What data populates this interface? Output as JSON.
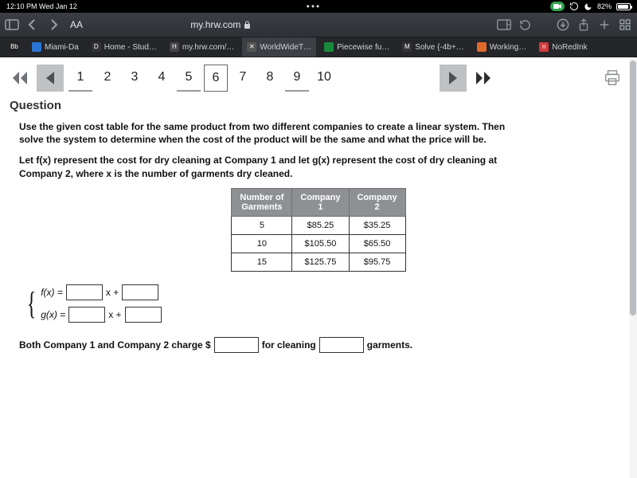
{
  "status": {
    "time_date": "12:10 PM  Wed Jan 12",
    "battery_pct": "82%"
  },
  "browser": {
    "text_size_label": "AA",
    "url": "my.hrw.com",
    "lock": "🔒"
  },
  "tabs": [
    {
      "label": "",
      "fav_bg": "#222",
      "fav_text": "Bb"
    },
    {
      "label": "Miami-Da",
      "fav_bg": "#2a74d4",
      "fav_text": ""
    },
    {
      "label": "Home - Stud…",
      "fav_bg": "#333",
      "fav_text": "D"
    },
    {
      "label": "my.hrw.com/…",
      "fav_bg": "#444",
      "fav_text": "H"
    },
    {
      "label": "WorldWideT…",
      "fav_bg": "#555",
      "fav_text": "✕",
      "active": true
    },
    {
      "label": "Piecewise fu…",
      "fav_bg": "#1a8a3a",
      "fav_text": ""
    },
    {
      "label": "Solve {-4b+…",
      "fav_bg": "#333",
      "fav_text": "M"
    },
    {
      "label": "Working…",
      "fav_bg": "#e06a2b",
      "fav_text": ""
    },
    {
      "label": "NoRedInk",
      "fav_bg": "#d23b3b",
      "fav_text": "n"
    }
  ],
  "pager": {
    "numbers": [
      "1",
      "2",
      "3",
      "4",
      "5",
      "6",
      "7",
      "8",
      "9",
      "10"
    ],
    "visited": [
      0,
      4,
      8
    ],
    "current": 5
  },
  "question": {
    "title": "Question",
    "para1": "Use the given cost table for the same product from two different companies to create a linear system. Then solve the system to determine when the cost of the product will be the same and what the price will be.",
    "para2": "Let f(x) represent the cost for dry cleaning at Company 1 and let g(x) represent the cost of dry cleaning at Company 2, where x is the number of garments dry cleaned."
  },
  "table": {
    "headers": {
      "c0a": "Number of",
      "c0b": "Garments",
      "c1a": "Company",
      "c1b": "1",
      "c2a": "Company",
      "c2b": "2"
    },
    "rows": [
      {
        "n": "5",
        "c1": "$85.25",
        "c2": "$35.25"
      },
      {
        "n": "10",
        "c1": "$105.50",
        "c2": "$65.50"
      },
      {
        "n": "15",
        "c1": "$125.75",
        "c2": "$95.75"
      }
    ]
  },
  "equations": {
    "f_lhs": "f(x) =",
    "g_lhs": "g(x) =",
    "x_plus": "x +"
  },
  "sentence": {
    "s1": "Both Company 1 and Company 2 charge $",
    "s2": "for cleaning",
    "s3": "garments."
  }
}
